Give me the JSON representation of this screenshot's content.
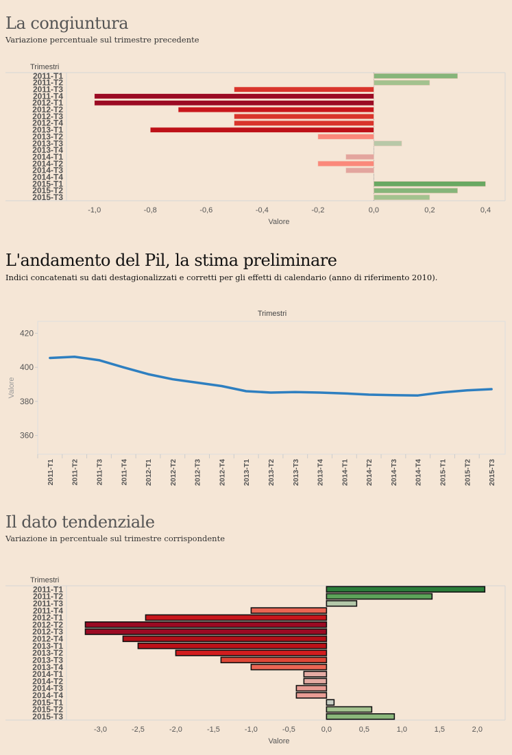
{
  "sections": [
    {
      "title": "La congiuntura",
      "subtitle": "Variazione percentuale sul trimestre precedente"
    },
    {
      "title": "L'andamento del Pil, la stima preliminare",
      "subtitle": "Indici concatenati su dati destagionalizzati e corretti per gli effetti di calendario (anno di riferimento 2010)."
    },
    {
      "title": "Il dato tendenziale",
      "subtitle": "Variazione in percentuale sul trimestre corrispondente"
    }
  ],
  "chart_data": [
    {
      "type": "bar",
      "orientation": "horizontal",
      "title": "La congiuntura",
      "ylabel": "Trimestri",
      "xlabel": "Valore",
      "categories": [
        "2011-T1",
        "2011-T2",
        "2011-T3",
        "2011-T4",
        "2012-T1",
        "2012-T2",
        "2012-T3",
        "2012-T4",
        "2013-T1",
        "2013-T2",
        "2013-T3",
        "2013-T4",
        "2014-T1",
        "2014-T2",
        "2014-T3",
        "2014-T4",
        "2015-T1",
        "2015-T2",
        "2015-T3"
      ],
      "values": [
        0.3,
        0.2,
        -0.5,
        -1.0,
        -1.0,
        -0.7,
        -0.5,
        -0.5,
        -0.8,
        -0.2,
        0.1,
        0.0,
        -0.1,
        -0.2,
        -0.1,
        0.0,
        0.4,
        0.3,
        0.2
      ],
      "colors": [
        "#86b57a",
        "#a3c28e",
        "#d9342b",
        "#9b0a23",
        "#9b0a23",
        "#c8161c",
        "#d9342b",
        "#d9342b",
        "#bd1118",
        "#fb887a",
        "#b8c8a8",
        "#cccccc",
        "#e3a59e",
        "#fb887a",
        "#e3a59e",
        "#cccccc",
        "#6aa862",
        "#86b57a",
        "#a3c28e"
      ],
      "xticks": [
        "-1,0",
        "-0,8",
        "-0,6",
        "-0,4",
        "-0,2",
        "0,0",
        "0,2",
        "0,4"
      ],
      "xtick_values": [
        -1.0,
        -0.8,
        -0.6,
        -0.4,
        -0.2,
        0.0,
        0.2,
        0.4
      ],
      "xlim": [
        -1.1,
        0.47
      ]
    },
    {
      "type": "line",
      "title": "L'andamento del Pil, la stima preliminare",
      "xlabel": "Trimestri",
      "ylabel": "Valore",
      "categories": [
        "2011-T1",
        "2011-T2",
        "2011-T3",
        "2011-T4",
        "2012-T1",
        "2012-T2",
        "2012-T3",
        "2012-T4",
        "2013-T1",
        "2013-T2",
        "2013-T3",
        "2013-T4",
        "2014-T1",
        "2014-T2",
        "2014-T3",
        "2014-T4",
        "2015-T1",
        "2015-T2",
        "2015-T3"
      ],
      "values": [
        405.5,
        406.2,
        404.2,
        400.0,
        396.0,
        393.0,
        391.0,
        389.0,
        386.0,
        385.2,
        385.5,
        385.2,
        384.7,
        384.0,
        383.7,
        383.5,
        385.3,
        386.5,
        387.2
      ],
      "yticks": [
        "420",
        "400",
        "380",
        "360"
      ],
      "ytick_values": [
        420,
        400,
        380,
        360
      ],
      "ylim": [
        349,
        427
      ],
      "color": "#2e7fc0"
    },
    {
      "type": "bar",
      "orientation": "horizontal",
      "title": "Il dato tendenziale",
      "ylabel": "Trimestri",
      "xlabel": "Valore",
      "categories": [
        "2011-T1",
        "2011-T2",
        "2011-T3",
        "2011-T4",
        "2012-T1",
        "2012-T2",
        "2012-T3",
        "2012-T4",
        "2013-T1",
        "2013-T2",
        "2013-T3",
        "2013-T4",
        "2014-T1",
        "2014-T2",
        "2014-T3",
        "2014-T4",
        "2015-T1",
        "2015-T2",
        "2015-T3"
      ],
      "values": [
        2.1,
        1.4,
        0.4,
        -1.0,
        -2.4,
        -3.2,
        -3.2,
        -2.7,
        -2.5,
        -2.0,
        -1.4,
        -1.0,
        -0.3,
        -0.3,
        -0.4,
        -0.4,
        0.1,
        0.6,
        0.9
      ],
      "colors": [
        "#2b7d3a",
        "#5da45a",
        "#b3c8a9",
        "#ea6553",
        "#c8161c",
        "#9b0a23",
        "#9b0a23",
        "#b21018",
        "#bd1118",
        "#d21d1e",
        "#de4636",
        "#ea6553",
        "#e4aba3",
        "#e4aba3",
        "#e89c94",
        "#e89c94",
        "#c8cec4",
        "#a3c28e",
        "#8bb77b"
      ],
      "xticks": [
        "-3,0",
        "-2,5",
        "-2,0",
        "-1,5",
        "-1,0",
        "-0,5",
        "0,0",
        "0,5",
        "1,0",
        "1,5",
        "2,0"
      ],
      "xtick_values": [
        -3.0,
        -2.5,
        -2.0,
        -1.5,
        -1.0,
        -0.5,
        0.0,
        0.5,
        1.0,
        1.5,
        2.0
      ],
      "xlim": [
        -3.45,
        2.37
      ]
    }
  ]
}
